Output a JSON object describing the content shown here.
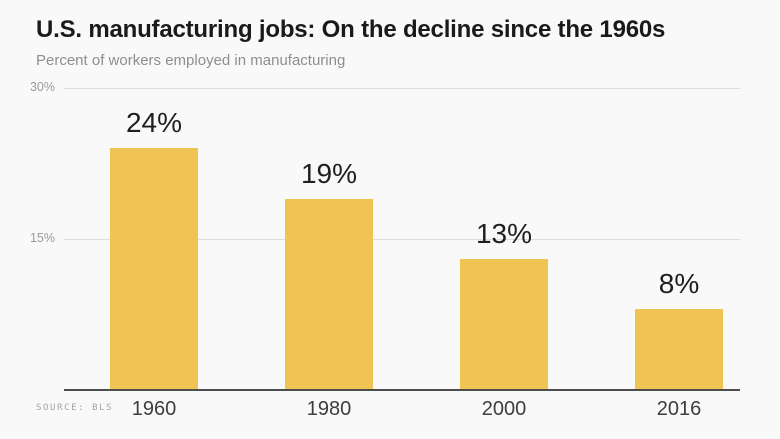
{
  "chart_data": {
    "type": "bar",
    "title": "U.S. manufacturing jobs: On the decline since the 1960s",
    "subtitle": "Percent of workers employed in manufacturing",
    "categories": [
      "1960",
      "1980",
      "2000",
      "2016"
    ],
    "values": [
      24,
      19,
      13,
      8
    ],
    "value_labels": [
      "24%",
      "19%",
      "13%",
      "8%"
    ],
    "xlabel": "",
    "ylabel": "Percent of workers employed in manufacturing",
    "ylim": [
      0,
      30
    ],
    "yticks": [
      {
        "value": 30,
        "label": "30%"
      },
      {
        "value": 15,
        "label": "15%"
      }
    ],
    "grid": true,
    "legend": "none",
    "bar_color": "#F0C355",
    "background_color": "#F9F9F9"
  },
  "source": {
    "label": "SOURCE: BLS"
  }
}
